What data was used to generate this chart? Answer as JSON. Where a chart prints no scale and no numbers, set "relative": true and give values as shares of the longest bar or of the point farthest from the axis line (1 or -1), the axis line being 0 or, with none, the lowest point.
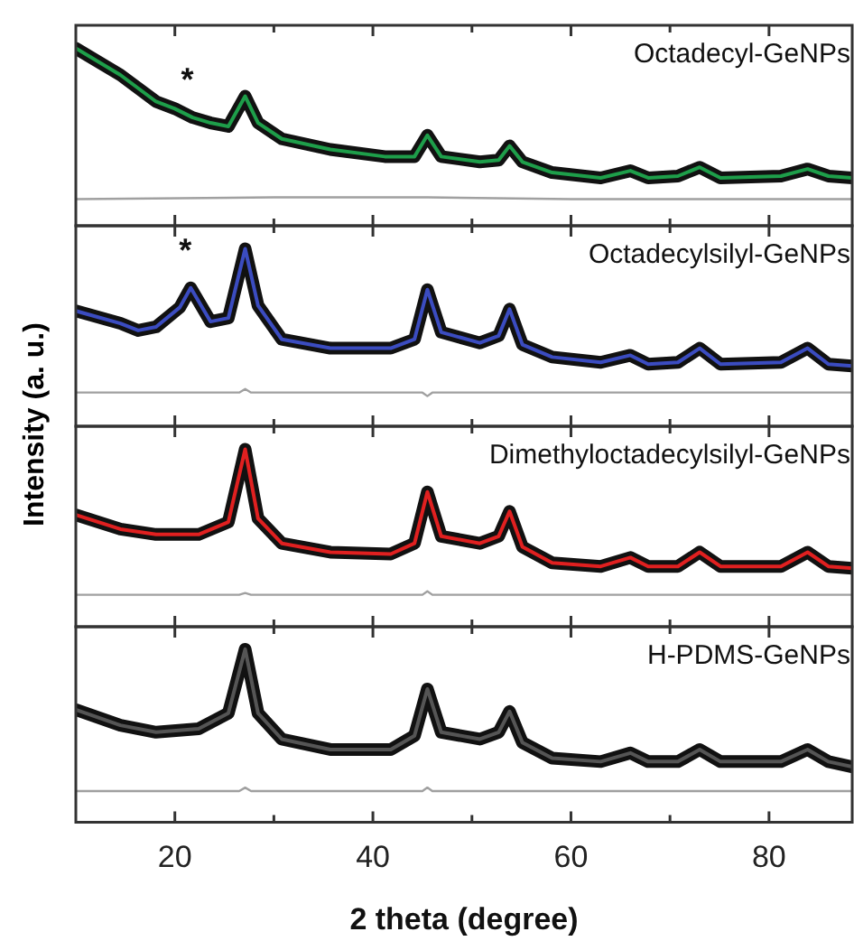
{
  "chart_data": [
    {
      "type": "line",
      "relative": true,
      "tick_labels": false,
      "ylabel": "Intensity (a. u.)",
      "xlim": [
        10,
        88.4
      ],
      "xticks": [
        20,
        {
          "value": 30,
          "label": null
        },
        40,
        {
          "value": 50,
          "label": null
        },
        60,
        {
          "value": 70,
          "label": null
        },
        80
      ],
      "x": [
        10,
        14.5,
        18.1,
        20,
        21.8,
        23.6,
        25.4,
        27.1,
        28.4,
        30.8,
        35.7,
        41.2,
        44.2,
        45.5,
        46.9,
        50.8,
        52.7,
        53.8,
        55.1,
        58.1,
        63,
        66,
        67.8,
        70.8,
        73,
        75.1,
        81.2,
        83.9,
        86,
        88.4
      ],
      "series": [
        {
          "color": "#111111",
          "values": [
            1.0,
            0.85,
            0.7,
            0.66,
            0.61,
            0.58,
            0.56,
            0.73,
            0.58,
            0.49,
            0.43,
            0.39,
            0.39,
            0.51,
            0.39,
            0.36,
            0.37,
            0.45,
            0.36,
            0.3,
            0.27,
            0.31,
            0.27,
            0.28,
            0.33,
            0.27,
            0.28,
            0.32,
            0.28,
            0.27
          ]
        },
        {
          "color": "#1e9e4a",
          "values": [
            1.0,
            0.85,
            0.7,
            0.66,
            0.61,
            0.58,
            0.56,
            0.73,
            0.58,
            0.49,
            0.43,
            0.39,
            0.39,
            0.51,
            0.39,
            0.36,
            0.37,
            0.45,
            0.36,
            0.3,
            0.27,
            0.31,
            0.27,
            0.28,
            0.33,
            0.27,
            0.28,
            0.32,
            0.28,
            0.27
          ]
        },
        {
          "color": "#a0a0a0",
          "x": [
            10,
            30,
            45.5,
            60,
            88.4
          ],
          "values": [
            0.15,
            0.16,
            0.16,
            0.15,
            0.15
          ]
        }
      ],
      "annotations": [
        "Octadecyl-GeNPs",
        {
          "text": "*",
          "x": 21.8,
          "y": 0.61
        }
      ]
    },
    {
      "type": "line",
      "relative": true,
      "tick_labels": false,
      "xlim": [
        10,
        88.4
      ],
      "xticks": [
        20,
        {
          "value": 30,
          "label": null
        },
        40,
        {
          "value": 50,
          "label": null
        },
        60,
        {
          "value": 70,
          "label": null
        },
        80
      ],
      "x": [
        10,
        14.5,
        16.3,
        18.1,
        20.5,
        21.6,
        23.6,
        25.4,
        27.1,
        28.4,
        30.8,
        35.7,
        41.8,
        44.2,
        45.5,
        46.9,
        50.8,
        52.7,
        53.8,
        55.1,
        58.1,
        63,
        66,
        67.8,
        70.8,
        73,
        75.1,
        81.2,
        83.9,
        86,
        88.4
      ],
      "series": [
        {
          "color": "#111111",
          "values": [
            0.65,
            0.58,
            0.54,
            0.56,
            0.67,
            0.78,
            0.59,
            0.61,
            1.0,
            0.68,
            0.49,
            0.44,
            0.44,
            0.49,
            0.77,
            0.53,
            0.47,
            0.51,
            0.66,
            0.46,
            0.39,
            0.36,
            0.4,
            0.35,
            0.36,
            0.44,
            0.35,
            0.36,
            0.44,
            0.35,
            0.34
          ]
        },
        {
          "color": "#3b4cc0",
          "values": [
            0.65,
            0.58,
            0.54,
            0.56,
            0.67,
            0.78,
            0.59,
            0.61,
            1.0,
            0.68,
            0.49,
            0.44,
            0.44,
            0.49,
            0.77,
            0.53,
            0.47,
            0.51,
            0.66,
            0.46,
            0.39,
            0.36,
            0.4,
            0.35,
            0.36,
            0.44,
            0.35,
            0.36,
            0.44,
            0.35,
            0.34
          ]
        },
        {
          "color": "#a0a0a0",
          "x": [
            10,
            26.5,
            27.1,
            27.7,
            45,
            45.5,
            46,
            88.4
          ],
          "values": [
            0.19,
            0.19,
            0.21,
            0.19,
            0.19,
            0.17,
            0.19,
            0.19
          ]
        }
      ],
      "annotations": [
        "Octadecylsilyl-GeNPs",
        {
          "text": "*",
          "x": 21.6,
          "y": 0.78
        }
      ]
    },
    {
      "type": "line",
      "relative": true,
      "tick_labels": false,
      "xlim": [
        10,
        88.4
      ],
      "xticks": [
        20,
        {
          "value": 30,
          "label": null
        },
        40,
        {
          "value": 50,
          "label": null
        },
        60,
        {
          "value": 70,
          "label": null
        },
        80
      ],
      "x": [
        10,
        14.5,
        18.1,
        22.4,
        25.4,
        27.1,
        28.4,
        30.8,
        35.7,
        41.8,
        44.2,
        45.5,
        46.9,
        50.8,
        52.7,
        53.8,
        55.1,
        58.1,
        63,
        66,
        67.8,
        70.8,
        73,
        75.1,
        81.2,
        83.9,
        86,
        88.4
      ],
      "series": [
        {
          "color": "#111111",
          "values": [
            0.63,
            0.55,
            0.52,
            0.52,
            0.59,
            1.0,
            0.61,
            0.47,
            0.42,
            0.41,
            0.47,
            0.76,
            0.51,
            0.47,
            0.51,
            0.65,
            0.45,
            0.36,
            0.34,
            0.39,
            0.34,
            0.34,
            0.42,
            0.34,
            0.34,
            0.42,
            0.34,
            0.33
          ]
        },
        {
          "color": "#e02020",
          "values": [
            0.63,
            0.55,
            0.52,
            0.52,
            0.59,
            1.0,
            0.61,
            0.47,
            0.42,
            0.41,
            0.47,
            0.76,
            0.51,
            0.47,
            0.51,
            0.65,
            0.45,
            0.36,
            0.34,
            0.39,
            0.34,
            0.34,
            0.42,
            0.34,
            0.34,
            0.42,
            0.34,
            0.33
          ]
        },
        {
          "color": "#a0a0a0",
          "x": [
            10,
            26.5,
            27.1,
            27.7,
            45,
            45.5,
            46,
            88.4
          ],
          "values": [
            0.18,
            0.18,
            0.19,
            0.18,
            0.18,
            0.2,
            0.18,
            0.18
          ]
        }
      ],
      "annotations": [
        "Dimethyloctadecylsilyl-GeNPs"
      ]
    },
    {
      "type": "line",
      "relative": true,
      "tick_labels": "x",
      "xlabel": "2 theta (degree)",
      "xlim": [
        10,
        88.4
      ],
      "xticks": [
        20,
        {
          "value": 30,
          "label": null
        },
        40,
        {
          "value": 50,
          "label": null
        },
        60,
        {
          "value": 70,
          "label": null
        },
        80
      ],
      "x": [
        10,
        14.5,
        18.1,
        22.4,
        25.4,
        27.1,
        28.4,
        30.8,
        35.7,
        41.8,
        44.2,
        45.5,
        46.9,
        50.8,
        52.7,
        53.8,
        55.1,
        58.1,
        63,
        66,
        67.8,
        70.8,
        73,
        75.1,
        81.2,
        83.9,
        86,
        88.4
      ],
      "series": [
        {
          "color": "#111111",
          "values": [
            0.65,
            0.56,
            0.52,
            0.54,
            0.63,
            1.0,
            0.63,
            0.48,
            0.42,
            0.42,
            0.5,
            0.77,
            0.52,
            0.48,
            0.52,
            0.64,
            0.46,
            0.37,
            0.35,
            0.4,
            0.35,
            0.35,
            0.42,
            0.35,
            0.35,
            0.42,
            0.35,
            0.32
          ]
        },
        {
          "color": "#555555",
          "values": [
            0.65,
            0.56,
            0.52,
            0.54,
            0.63,
            1.0,
            0.63,
            0.48,
            0.42,
            0.42,
            0.5,
            0.77,
            0.52,
            0.48,
            0.52,
            0.64,
            0.46,
            0.37,
            0.35,
            0.4,
            0.35,
            0.35,
            0.42,
            0.35,
            0.35,
            0.42,
            0.35,
            0.32
          ]
        },
        {
          "color": "#a0a0a0",
          "x": [
            10,
            26.5,
            27.1,
            27.7,
            45,
            45.5,
            46,
            88.4
          ],
          "values": [
            0.18,
            0.18,
            0.2,
            0.18,
            0.18,
            0.2,
            0.18,
            0.18
          ]
        }
      ],
      "annotations": [
        "H-PDMS-GeNPs"
      ]
    }
  ]
}
